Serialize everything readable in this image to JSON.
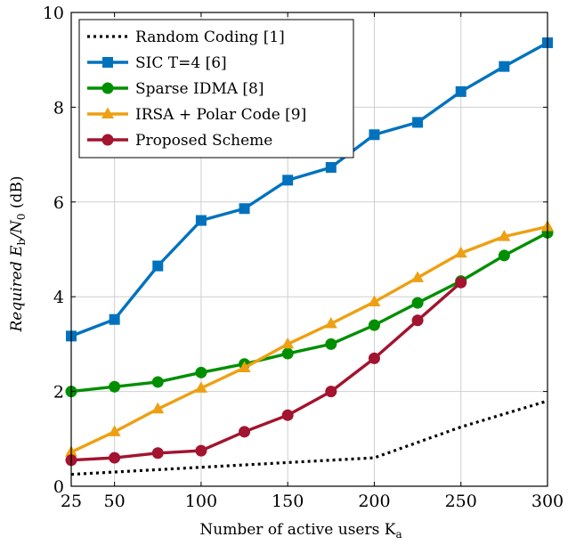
{
  "chart_data": {
    "type": "line",
    "xlabel": "Number of active users K",
    "xlabel_sub": "a",
    "ylabel_pre": "Required E",
    "ylabel_b": "b",
    "ylabel_mid": "/N",
    "ylabel_0": "0",
    "ylabel_post": " (dB)",
    "xlim": [
      25,
      300
    ],
    "ylim": [
      0,
      10
    ],
    "xticks": [
      25,
      50,
      100,
      150,
      200,
      250,
      300
    ],
    "yticks": [
      0,
      2,
      4,
      6,
      8,
      10
    ],
    "grid": true,
    "legend_position": "top-left",
    "series": [
      {
        "name": "Random Coding [1]",
        "color": "#000000",
        "style": "dotted",
        "marker": "none",
        "x": [
          25,
          50,
          100,
          150,
          200,
          250,
          300
        ],
        "y": [
          0.25,
          0.3,
          0.4,
          0.5,
          0.6,
          1.25,
          1.8
        ]
      },
      {
        "name": "SIC T=4 [6]",
        "color": "#0072BD",
        "style": "solid",
        "marker": "square",
        "x": [
          25,
          50,
          75,
          100,
          125,
          150,
          175,
          200,
          225,
          250,
          275,
          300
        ],
        "y": [
          3.17,
          3.52,
          4.65,
          5.61,
          5.86,
          6.46,
          6.73,
          7.42,
          7.68,
          8.33,
          8.86,
          9.36
        ]
      },
      {
        "name": "Sparse IDMA [8]",
        "color": "#008F00",
        "style": "solid",
        "marker": "circle",
        "x": [
          25,
          50,
          75,
          100,
          125,
          150,
          175,
          200,
          225,
          250,
          275,
          300
        ],
        "y": [
          2.0,
          2.1,
          2.2,
          2.4,
          2.58,
          2.8,
          3.0,
          3.4,
          3.87,
          4.33,
          4.87,
          5.35
        ]
      },
      {
        "name": "IRSA + Polar Code [9]",
        "color": "#EDA013",
        "style": "solid",
        "marker": "triangle",
        "x": [
          25,
          50,
          75,
          100,
          125,
          150,
          175,
          200,
          225,
          250,
          275,
          300
        ],
        "y": [
          0.72,
          1.15,
          1.63,
          2.07,
          2.5,
          3.0,
          3.43,
          3.89,
          4.4,
          4.92,
          5.27,
          5.48
        ]
      },
      {
        "name": "Proposed Scheme",
        "color": "#A2142F",
        "style": "solid",
        "marker": "circle",
        "x": [
          25,
          50,
          75,
          100,
          125,
          150,
          175,
          200,
          225,
          250
        ],
        "y": [
          0.55,
          0.6,
          0.7,
          0.75,
          1.15,
          1.5,
          2.0,
          2.7,
          3.5,
          4.3
        ]
      }
    ]
  }
}
